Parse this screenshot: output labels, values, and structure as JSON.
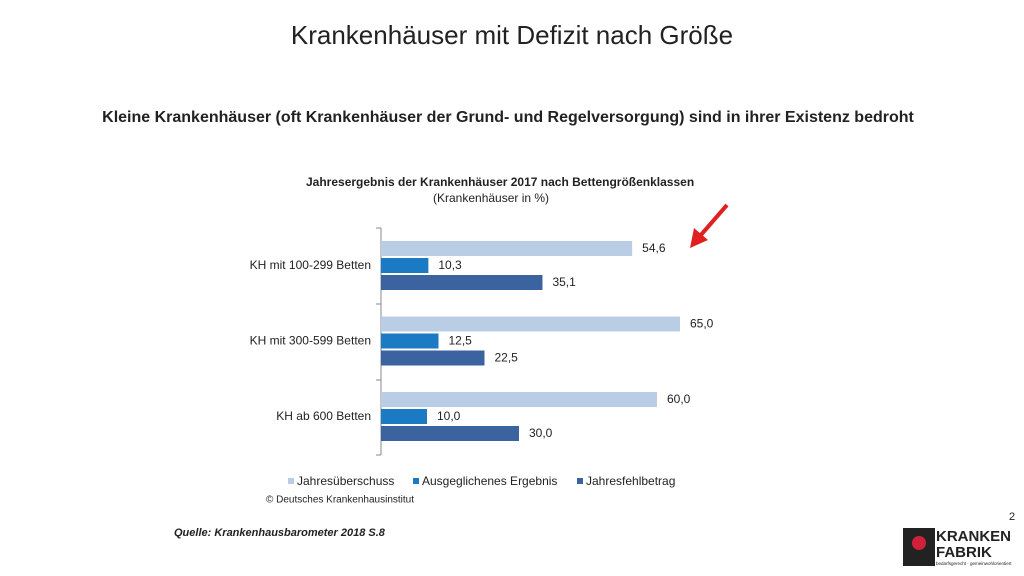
{
  "slide_title": "Krankenhäuser mit Defizit nach Größe",
  "headline": "Kleine Krankenhäuser (oft Krankenhäuser der Grund- und Regelversorgung) sind in ihrer Existenz bedroht",
  "chart_data": {
    "type": "bar",
    "orientation": "horizontal",
    "title": "Jahresergebnis der Krankenhäuser 2017 nach Bettengrößenklassen",
    "subtitle": "(Krankenhäuser in %)",
    "categories": [
      "KH mit 100-299 Betten",
      "KH mit 300-599 Betten",
      "KH ab 600 Betten"
    ],
    "series": [
      {
        "name": "Jahresüberschuss",
        "color": "#b9cde5",
        "values": [
          54.6,
          65.0,
          60.0
        ],
        "value_labels": [
          "54,6",
          "65,0",
          "60,0"
        ]
      },
      {
        "name": "Ausgeglichenes Ergebnis",
        "color": "#1a7ac4",
        "values": [
          10.3,
          12.5,
          10.0
        ],
        "value_labels": [
          "10,3",
          "12,5",
          "10,0"
        ]
      },
      {
        "name": "Jahresfehlbetrag",
        "color": "#3a63a0",
        "values": [
          35.1,
          22.5,
          30.0
        ],
        "value_labels": [
          "35,1",
          "22,5",
          "30,0"
        ]
      }
    ],
    "xlim": [
      0,
      70
    ],
    "copyright": "© Deutsches Krankenhausinstitut"
  },
  "source": "Quelle: Krankenhausbarometer 2018 S.8",
  "page_number": "2",
  "logo": {
    "line1": "KRANKEN",
    "line2": "FABRIK",
    "tagline": "bedarfsgerecht · gemeinwohlorientiert"
  }
}
